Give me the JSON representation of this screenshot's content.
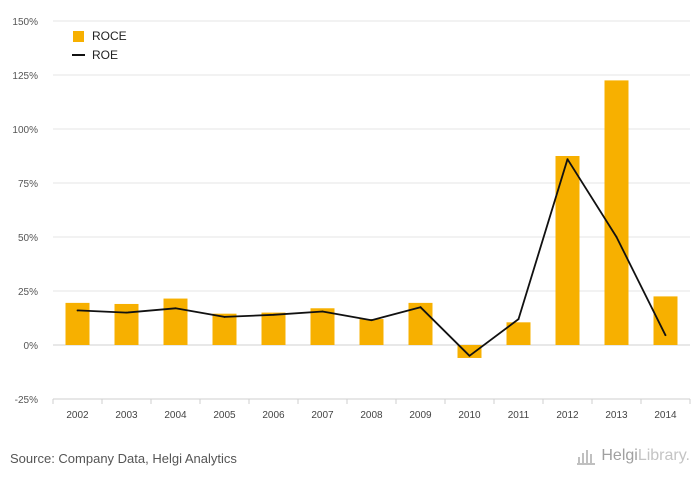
{
  "chart_data": {
    "type": "bar",
    "categories": [
      "2002",
      "2003",
      "2004",
      "2005",
      "2006",
      "2007",
      "2008",
      "2009",
      "2010",
      "2011",
      "2012",
      "2013",
      "2014"
    ],
    "series": [
      {
        "name": "ROCE",
        "type": "bar",
        "color": "#f7b000",
        "values": [
          19.5,
          19,
          21.5,
          14.5,
          15,
          17,
          12,
          19.5,
          -6,
          10.5,
          87.5,
          122.5,
          22.5
        ]
      },
      {
        "name": "ROE",
        "type": "line",
        "color": "#111111",
        "values": [
          16,
          15,
          17,
          13,
          14,
          15.5,
          11.5,
          17.5,
          -5,
          12,
          86,
          50,
          4.5
        ]
      }
    ],
    "yticks": [
      -25,
      0,
      25,
      50,
      75,
      100,
      125,
      150
    ],
    "ytick_labels": [
      "-25%",
      "0%",
      "25%",
      "50%",
      "75%",
      "100%",
      "125%",
      "150%"
    ],
    "ylim": [
      -25,
      150
    ],
    "xlabel": "",
    "ylabel": "",
    "title": "",
    "legend_position": "top-left",
    "grid": true
  },
  "footer": {
    "source": "Source: Company Data, Helgi Analytics",
    "brand_a": "Helgi",
    "brand_b": "Library."
  }
}
